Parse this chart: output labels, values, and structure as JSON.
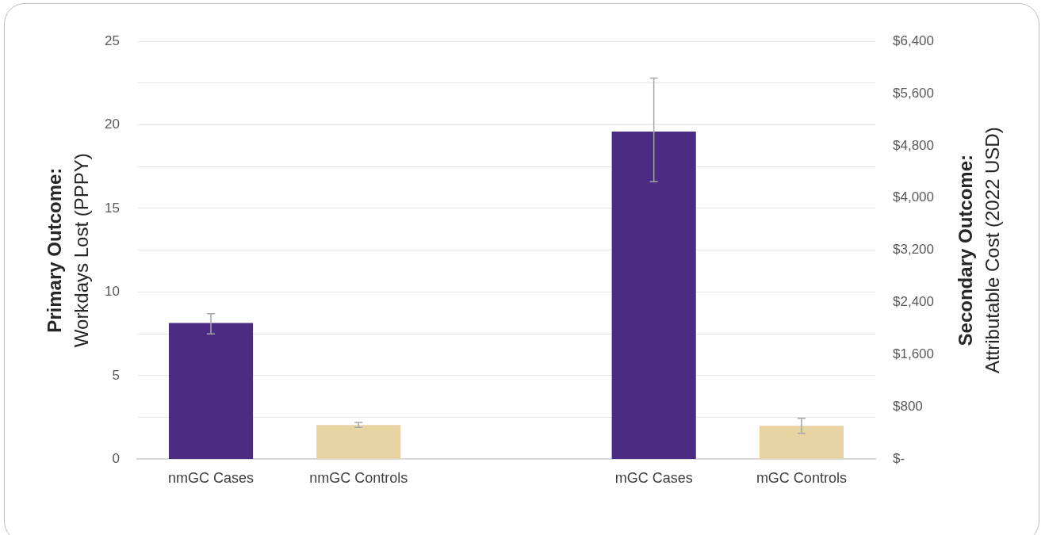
{
  "chart_data": {
    "type": "bar",
    "categories": [
      "nmGC Cases",
      "nmGC Controls",
      null,
      "mGC Cases",
      "mGC Controls"
    ],
    "values": [
      8.15,
      2.05,
      null,
      19.6,
      2.0
    ],
    "colors": [
      "#4b2c82",
      "#e8d3a2",
      "#4b2c82",
      "#4b2c82",
      "#e8d3a2"
    ],
    "errors": [
      [
        7.5,
        8.7
      ],
      [
        1.9,
        2.2
      ],
      null,
      [
        16.6,
        22.8
      ],
      [
        1.55,
        2.45
      ]
    ],
    "ylim": [
      0,
      25
    ],
    "yticks": [
      0,
      {
        "value": 2.5,
        "label": null
      },
      5,
      {
        "value": 7.5,
        "label": null
      },
      10,
      {
        "value": 12.5,
        "label": null
      },
      15,
      {
        "value": 17.5,
        "label": null
      },
      20,
      {
        "value": 22.5,
        "label": null
      },
      25
    ],
    "y2lim": [
      0,
      6400
    ],
    "y2ticks": [
      {
        "value": 0,
        "label": "$-"
      },
      {
        "value": 800,
        "label": "$800"
      },
      {
        "value": 1600,
        "label": "$1,600"
      },
      {
        "value": 2400,
        "label": "$2,400"
      },
      {
        "value": 3200,
        "label": "$3,200"
      },
      {
        "value": 4000,
        "label": "$4,000"
      },
      {
        "value": 4800,
        "label": "$4,800"
      },
      {
        "value": 5600,
        "label": "$5,600"
      },
      {
        "value": 6400,
        "label": "$6,400"
      }
    ],
    "ylabel": "Primary Outcome:\nWorkdays Lost (PPPY)",
    "y2label": "Secondary Outcome:\nAttributable Cost (2022 USD)",
    "grid": "y"
  }
}
